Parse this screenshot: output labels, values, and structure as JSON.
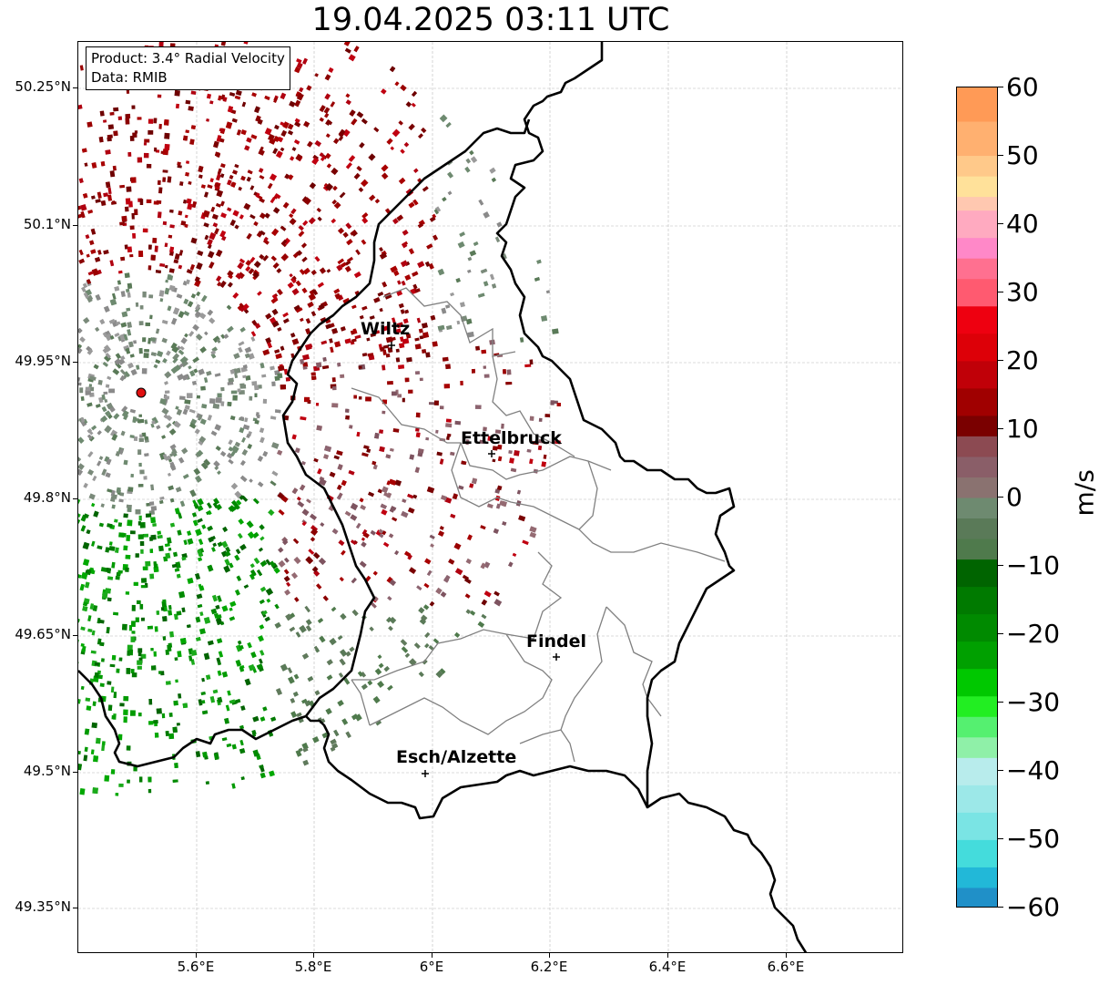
{
  "title": "19.04.2025 03:11 UTC",
  "info": {
    "product": "Product: 3.4° Radial Velocity",
    "data": "Data: RMIB"
  },
  "axes": {
    "lat_labels": [
      "50.25°N",
      "50.1°N",
      "49.95°N",
      "49.8°N",
      "49.65°N",
      "49.5°N",
      "49.35°N"
    ],
    "lon_labels": [
      "5.6°E",
      "5.8°E",
      "6°E",
      "6.2°E",
      "6.4°E",
      "6.6°E"
    ],
    "grid": true
  },
  "cities": [
    {
      "name": "Wiltz"
    },
    {
      "name": "Ettelbruck"
    },
    {
      "name": "Findel"
    },
    {
      "name": "Esch/Alzette"
    }
  ],
  "colorbar": {
    "unit": "m/s",
    "ticks": [
      "60",
      "50",
      "40",
      "30",
      "20",
      "10",
      "0",
      "−10",
      "−20",
      "−30",
      "−40",
      "−50",
      "−60"
    ],
    "range": [
      -60,
      60
    ]
  },
  "colors": {
    "radar_site": "#e01010",
    "border_national": "#000000",
    "border_cantonal": "#808080"
  }
}
